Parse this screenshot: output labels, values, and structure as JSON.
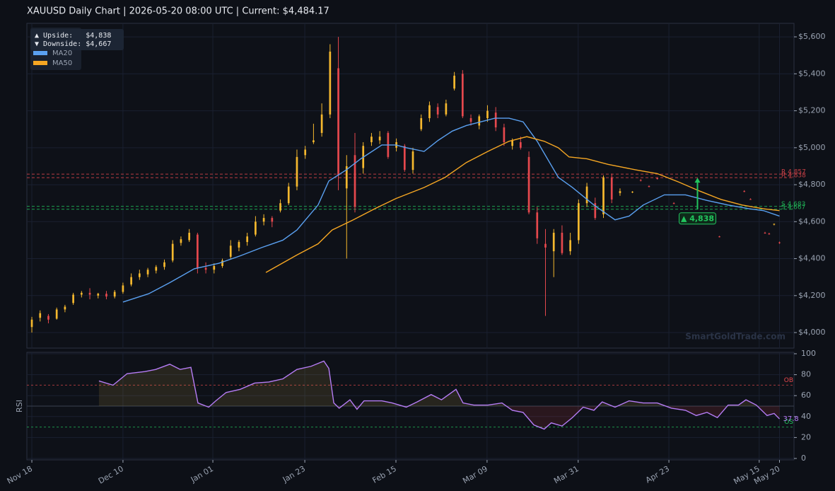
{
  "chart_data": [
    {
      "type": "candlestick",
      "title": "XAUUSD  Daily Chart  |  2026-05-20 08:00 UTC  |  Current: $4,484.17",
      "xlim": [
        -1.2,
        184
      ],
      "ylim": [
        3916,
        5673
      ],
      "yticks": [
        {
          "value": 4000,
          "label": "$4,000"
        },
        {
          "value": 4200,
          "label": "$4,200"
        },
        {
          "value": 4400,
          "label": "$4,400"
        },
        {
          "value": 4600,
          "label": "$4,600"
        },
        {
          "value": 4800,
          "label": "$4,800"
        },
        {
          "value": 5000,
          "label": "$5,000"
        },
        {
          "value": 5200,
          "label": "$5,200"
        },
        {
          "value": 5400,
          "label": "$5,400"
        },
        {
          "value": 5600,
          "label": "$5,600"
        }
      ],
      "grid": true,
      "up_color": "#f5b82e",
      "down_color": "#e5484d",
      "x": [
        0,
        2,
        4,
        6,
        8,
        10,
        12,
        14,
        16,
        18,
        20,
        22,
        24,
        26,
        28,
        30,
        32,
        34,
        36,
        38,
        40,
        42,
        44,
        46,
        48,
        50,
        52,
        54,
        56,
        58,
        60,
        62,
        64,
        66,
        68,
        70,
        72,
        74,
        76,
        78,
        80,
        82,
        84,
        86,
        88,
        90,
        92,
        94,
        96,
        98,
        100,
        102,
        104,
        106,
        108,
        110,
        112,
        114,
        116,
        118,
        120,
        122,
        124,
        126,
        128,
        130,
        132,
        134,
        136,
        138,
        140,
        142,
        145,
        147,
        149,
        151,
        155,
        166,
        172,
        173.5,
        177,
        178,
        179.2,
        180.5
      ],
      "open": [
        4030,
        4080,
        4090,
        4075,
        4125,
        4160,
        4205,
        4215,
        4200,
        4210,
        4195,
        4220,
        4260,
        4300,
        4315,
        4335,
        4355,
        4390,
        4485,
        4500,
        4530,
        4350,
        4340,
        4360,
        4410,
        4460,
        4490,
        4530,
        4600,
        4620,
        4660,
        4700,
        4790,
        4960,
        5030,
        5080,
        5180,
        5430,
        4780,
        4960,
        4890,
        5030,
        5040,
        5080,
        5000,
        5010,
        4880,
        5100,
        5160,
        5220,
        5180,
        5320,
        5400,
        5160,
        5120,
        5160,
        5190,
        5110,
        5010,
        5030,
        4950,
        4650,
        4480,
        4440,
        4540,
        4440,
        4500,
        4700,
        4700,
        4640,
        4840,
        4755,
        4760,
        4825,
        4792,
        4835,
        4700,
        4520,
        4765,
        4722,
        4540,
        4535,
        4585,
        4488
      ],
      "high": [
        4085,
        4120,
        4100,
        4135,
        4150,
        4215,
        4225,
        4240,
        4215,
        4225,
        4230,
        4270,
        4320,
        4340,
        4350,
        4365,
        4395,
        4500,
        4520,
        4560,
        4540,
        4380,
        4375,
        4400,
        4500,
        4500,
        4540,
        4630,
        4640,
        4630,
        4720,
        4810,
        4990,
        5010,
        5130,
        5240,
        5560,
        5600,
        4960,
        5080,
        5030,
        5080,
        5090,
        5090,
        5050,
        5020,
        5000,
        5180,
        5250,
        5240,
        5260,
        5410,
        5420,
        5180,
        5180,
        5230,
        5220,
        5130,
        5050,
        5060,
        4980,
        4680,
        4560,
        4560,
        4580,
        4540,
        4720,
        4810,
        4730,
        4850,
        4860,
        4780,
        4765,
        4830,
        4796,
        4840,
        4705,
        4523,
        4770,
        4726,
        4545,
        4540,
        4590,
        4492
      ],
      "low": [
        4000,
        4060,
        4050,
        4070,
        4110,
        4150,
        4190,
        4180,
        4185,
        4180,
        4185,
        4210,
        4250,
        4285,
        4300,
        4320,
        4340,
        4380,
        4470,
        4490,
        4320,
        4320,
        4320,
        4350,
        4400,
        4440,
        4470,
        4520,
        4580,
        4570,
        4650,
        4690,
        4770,
        4940,
        5020,
        5060,
        5160,
        4770,
        4400,
        4650,
        4860,
        5010,
        5020,
        4940,
        4980,
        4870,
        4860,
        5090,
        5140,
        5160,
        5170,
        5310,
        5160,
        5120,
        5100,
        5140,
        5090,
        5010,
        4990,
        4990,
        4640,
        4480,
        4090,
        4300,
        4420,
        4420,
        4480,
        4680,
        4610,
        4620,
        4700,
        4740,
        4755,
        4818,
        4786,
        4828,
        4695,
        4515,
        4760,
        4718,
        4535,
        4530,
        4580,
        4480
      ],
      "close": [
        4070,
        4105,
        4070,
        4125,
        4140,
        4205,
        4215,
        4205,
        4210,
        4195,
        4220,
        4255,
        4300,
        4320,
        4340,
        4355,
        4380,
        4480,
        4505,
        4540,
        4350,
        4340,
        4360,
        4390,
        4470,
        4490,
        4520,
        4600,
        4620,
        4600,
        4700,
        4790,
        4950,
        4990,
        5040,
        5180,
        5520,
        4850,
        4900,
        4680,
        5010,
        5060,
        5060,
        4950,
        5030,
        4880,
        4980,
        5160,
        5230,
        5180,
        5240,
        5390,
        5170,
        5140,
        5170,
        5200,
        5110,
        5030,
        5040,
        5000,
        4650,
        4510,
        4460,
        4540,
        4430,
        4500,
        4700,
        4790,
        4620,
        4840,
        4720,
        4765,
        4762,
        4822,
        4790,
        4832,
        4698,
        4518,
        4762,
        4720,
        4538,
        4532,
        4588,
        4484.17
      ],
      "series": [
        {
          "name": "MA20",
          "color": "#5aa0f0",
          "x": [
            22,
            28.2,
            33.3,
            39.2,
            45.2,
            50.3,
            55.5,
            60.6,
            64,
            69.1,
            71.7,
            75.9,
            79.4,
            84.5,
            87.9,
            90.4,
            94.7,
            98.1,
            101.5,
            104.9,
            111.8,
            115.2,
            118.6,
            122,
            127.1,
            130.5,
            135.7,
            140.8,
            144.2,
            147.6,
            152.7,
            157.8,
            163,
            168.1,
            173.2,
            176.6,
            180.5
          ],
          "values": [
            4165,
            4210,
            4270,
            4345,
            4375,
            4415,
            4460,
            4500,
            4555,
            4690,
            4820,
            4880,
            4940,
            5015,
            5015,
            5000,
            4980,
            5040,
            5090,
            5120,
            5160,
            5160,
            5140,
            5035,
            4840,
            4785,
            4690,
            4610,
            4630,
            4690,
            4745,
            4745,
            4715,
            4690,
            4670,
            4660,
            4630
          ]
        },
        {
          "name": "MA50",
          "color": "#f5a623",
          "x": [
            56.5,
            64,
            69.1,
            72.5,
            77.6,
            82.8,
            87.9,
            94.7,
            99.8,
            104.9,
            110.1,
            115.2,
            119.5,
            123.7,
            127.1,
            129.7,
            134,
            139.1,
            145.9,
            151,
            156.1,
            161.3,
            166.4,
            171.5,
            176.6,
            180.5
          ],
          "values": [
            4325,
            4420,
            4480,
            4555,
            4610,
            4670,
            4725,
            4785,
            4840,
            4920,
            4980,
            5035,
            5060,
            5035,
            5000,
            4950,
            4940,
            4910,
            4880,
            4860,
            4815,
            4765,
            4720,
            4690,
            4670,
            4660
          ]
        }
      ],
      "levels": [
        {
          "value": 4857,
          "label": "R 4,857",
          "color": "#e5484d"
        },
        {
          "value": 4838,
          "label": "R 4,838",
          "color": "#e5484d"
        },
        {
          "value": 4683,
          "label": "S 4,683",
          "color": "#22c55e"
        },
        {
          "value": 4667,
          "label": "S 4,667",
          "color": "#22c55e"
        }
      ],
      "annotation": {
        "x": 160.7,
        "from": 4667,
        "to": 4838,
        "label": "▲ 4,838",
        "color": "#22c55e"
      },
      "info_box": [
        "▲ Upside:   $4,838",
        "▼ Downside: $4,667"
      ],
      "watermark": "SmartGoldTrade.com"
    },
    {
      "type": "line",
      "y_label": "RSI",
      "xlim": [
        -1.2,
        184
      ],
      "ylim": [
        -1.35,
        101.35
      ],
      "yticks": [
        0,
        20,
        40,
        60,
        80,
        100
      ],
      "xticks": [
        {
          "value": 0,
          "label": "Nov 18"
        },
        {
          "value": 22,
          "label": "Dec 10"
        },
        {
          "value": 43.7,
          "label": "Jan 01"
        },
        {
          "value": 65.9,
          "label": "Jan 23"
        },
        {
          "value": 87.9,
          "label": "Feb 15"
        },
        {
          "value": 109.9,
          "label": "Mar 09"
        },
        {
          "value": 131.9,
          "label": "Mar 31"
        },
        {
          "value": 153.8,
          "label": "Apr 23"
        },
        {
          "value": 175.6,
          "label": "May 15"
        },
        {
          "value": 180.5,
          "label": "May 20"
        }
      ],
      "midline": 50,
      "levels": [
        {
          "value": 70,
          "label": "OB",
          "color": "#e5484d"
        },
        {
          "value": 30,
          "label": "OS",
          "color": "#22c55e"
        }
      ],
      "series": [
        {
          "name": "RSI",
          "color": "#b57cf5",
          "x": [
            16.2,
            19.6,
            23,
            27.3,
            29.9,
            33.3,
            35.8,
            38.4,
            40.1,
            42.7,
            44.4,
            46.9,
            50.3,
            53.8,
            57.2,
            60.6,
            64,
            67.4,
            70.5,
            71.7,
            72.9,
            74.2,
            76.8,
            78.5,
            80.2,
            84.5,
            87,
            90.4,
            93,
            96.4,
            98.9,
            102.4,
            104.1,
            106.7,
            110.1,
            113.5,
            116,
            118.6,
            121.2,
            123.7,
            125.4,
            128,
            130.5,
            133.1,
            135.7,
            137.7,
            140.8,
            144.2,
            147.6,
            151,
            154.4,
            157.8,
            160.4,
            163,
            165.5,
            168.1,
            170.6,
            172.4,
            174.9,
            177.5,
            179.2,
            180.5
          ],
          "values": [
            74,
            70,
            81,
            83,
            85,
            90,
            85,
            87,
            53,
            49,
            55,
            63,
            66,
            72,
            73,
            76,
            85,
            88,
            93,
            86,
            53,
            48,
            56,
            47,
            55,
            55,
            53,
            49,
            54,
            61,
            56,
            66,
            53,
            51,
            51,
            53,
            46,
            44,
            32,
            28,
            34,
            31,
            39,
            49,
            46,
            54,
            49,
            55,
            53,
            53,
            48,
            46,
            41,
            44,
            39,
            51,
            51,
            56,
            51,
            41,
            43,
            37.8
          ]
        }
      ],
      "last_label": "37.8"
    }
  ]
}
